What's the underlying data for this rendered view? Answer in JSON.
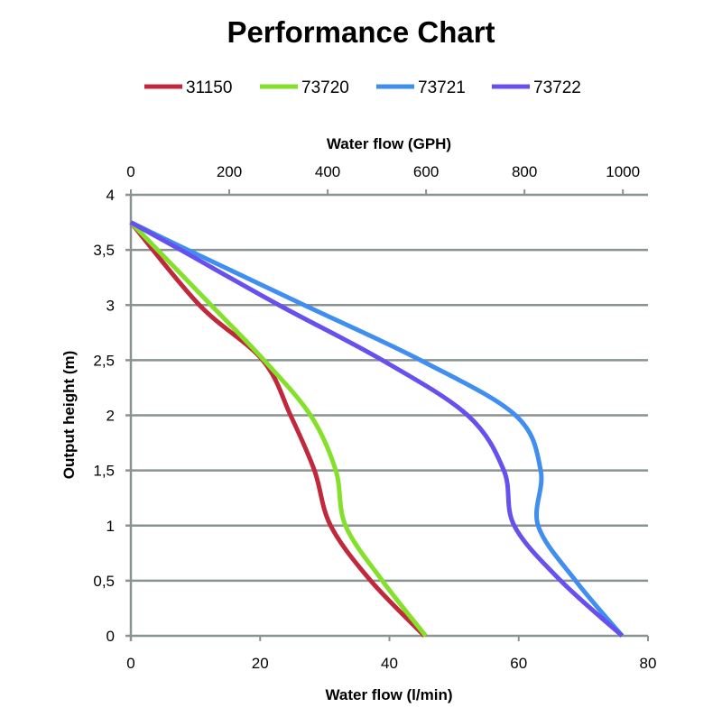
{
  "chart_data": {
    "type": "line",
    "title": "Performance Chart",
    "xlabel": "Water flow (l/min)",
    "x2label": "Water flow (GPH)",
    "ylabel": "Output height (m)",
    "xlim": [
      0,
      80
    ],
    "x2lim": [
      0,
      1051
    ],
    "ylim": [
      0,
      4
    ],
    "xticks": [
      "0",
      "20",
      "40",
      "60",
      "80"
    ],
    "x2ticks": [
      "0",
      "200",
      "400",
      "600",
      "800",
      "1000"
    ],
    "yticks": [
      "0",
      "0,5",
      "1",
      "1,5",
      "2",
      "2,5",
      "3",
      "3,5",
      "4"
    ],
    "grid": "horizontal",
    "legend_position": "top",
    "series": [
      {
        "name": "31150",
        "color": "#C0283C",
        "points": [
          [
            0,
            3.75
          ],
          [
            10.6,
            3
          ],
          [
            20.4,
            2.5
          ],
          [
            24.7,
            2
          ],
          [
            28.4,
            1.5
          ],
          [
            30.9,
            1
          ],
          [
            37.1,
            0.5
          ],
          [
            45.4,
            0
          ]
        ]
      },
      {
        "name": "73720",
        "color": "#84E02A",
        "points": [
          [
            0,
            3.75
          ],
          [
            12.4,
            3
          ],
          [
            20.6,
            2.5
          ],
          [
            27.8,
            2
          ],
          [
            31.7,
            1.5
          ],
          [
            33.2,
            1
          ],
          [
            38.9,
            0.5
          ],
          [
            45.6,
            0
          ]
        ]
      },
      {
        "name": "73721",
        "color": "#3F8EF0",
        "points": [
          [
            0,
            3.75
          ],
          [
            8.8,
            3.5
          ],
          [
            26.8,
            3
          ],
          [
            44.8,
            2.5
          ],
          [
            59.5,
            2
          ],
          [
            63.4,
            1.5
          ],
          [
            63.0,
            1
          ],
          [
            68.8,
            0.5
          ],
          [
            76,
            0
          ]
        ]
      },
      {
        "name": "73722",
        "color": "#6650EE",
        "points": [
          [
            0,
            3.75
          ],
          [
            7.7,
            3.5
          ],
          [
            22.9,
            3
          ],
          [
            38.9,
            2.5
          ],
          [
            52.1,
            2
          ],
          [
            57.7,
            1.5
          ],
          [
            59.3,
            1
          ],
          [
            66.5,
            0.5
          ],
          [
            76,
            0
          ]
        ]
      }
    ]
  }
}
